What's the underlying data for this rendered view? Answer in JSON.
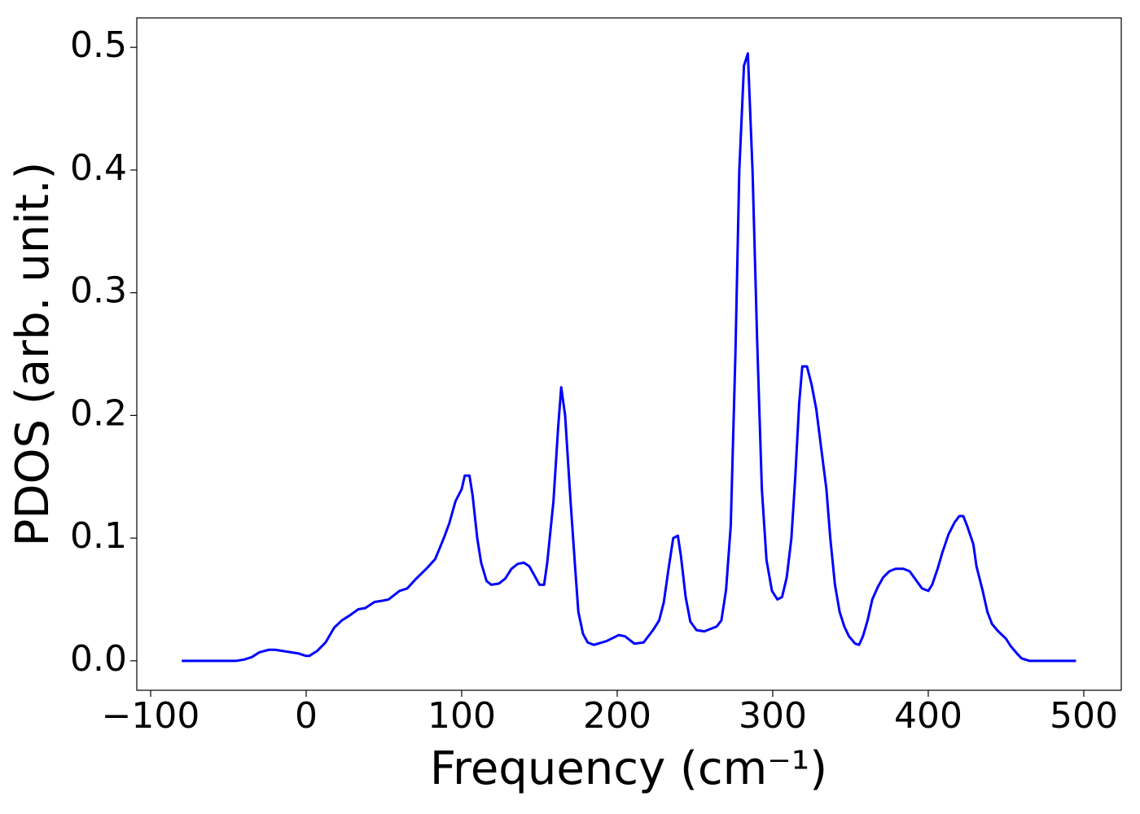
{
  "chart_data": {
    "type": "line",
    "xlabel": "Frequency (cm⁻¹)",
    "ylabel": "PDOS (arb. unit.)",
    "color": "#0000ff",
    "x": [
      -80,
      -45,
      -40,
      -35,
      -30,
      -24,
      -20,
      -15,
      -10,
      -5,
      0,
      2,
      7,
      12.5,
      18,
      23,
      28,
      33.5,
      38,
      44,
      49,
      53,
      60,
      65,
      70,
      78,
      83,
      88.5,
      92,
      96,
      100,
      102,
      105,
      107,
      110,
      112.5,
      116,
      119,
      124,
      128,
      132,
      136,
      140,
      143.5,
      147,
      150,
      153,
      155,
      159,
      162,
      164,
      166.5,
      170,
      173,
      175,
      178,
      181,
      185,
      193,
      201,
      205,
      211,
      217,
      223,
      227,
      230,
      233,
      236,
      239,
      241,
      244,
      247,
      251,
      256,
      264,
      267,
      270,
      273,
      276,
      278.5,
      281.5,
      284,
      287,
      290,
      293,
      296,
      299.5,
      303,
      306,
      309,
      312,
      314.5,
      317,
      319,
      322,
      325,
      328,
      331,
      334.5,
      337,
      340,
      343,
      346,
      349,
      353,
      355.5,
      358,
      361,
      364,
      367.5,
      371,
      375,
      379,
      384,
      388,
      392,
      396,
      400,
      402.5,
      406,
      409,
      413,
      417,
      420,
      422.5,
      425,
      429,
      431,
      435,
      438,
      441,
      445,
      450,
      453,
      457,
      460,
      465,
      478,
      495
    ],
    "values": [
      0,
      0,
      0.001,
      0.003,
      0.007,
      0.009,
      0.009,
      0.008,
      0.007,
      0.006,
      0.004,
      0.004,
      0.008,
      0.015,
      0.027,
      0.033,
      0.037,
      0.042,
      0.043,
      0.048,
      0.049,
      0.05,
      0.057,
      0.059,
      0.066,
      0.076,
      0.083,
      0.1,
      0.112,
      0.13,
      0.14,
      0.151,
      0.151,
      0.135,
      0.1,
      0.08,
      0.065,
      0.062,
      0.063,
      0.067,
      0.075,
      0.079,
      0.08,
      0.077,
      0.069,
      0.062,
      0.062,
      0.08,
      0.13,
      0.19,
      0.223,
      0.2,
      0.13,
      0.075,
      0.04,
      0.022,
      0.015,
      0.013,
      0.016,
      0.021,
      0.02,
      0.014,
      0.015,
      0.025,
      0.033,
      0.048,
      0.075,
      0.1,
      0.102,
      0.085,
      0.052,
      0.032,
      0.025,
      0.024,
      0.028,
      0.033,
      0.058,
      0.11,
      0.25,
      0.4,
      0.485,
      0.495,
      0.4,
      0.26,
      0.14,
      0.082,
      0.057,
      0.05,
      0.052,
      0.068,
      0.1,
      0.15,
      0.21,
      0.24,
      0.24,
      0.225,
      0.205,
      0.175,
      0.14,
      0.1,
      0.062,
      0.04,
      0.028,
      0.02,
      0.014,
      0.013,
      0.02,
      0.033,
      0.05,
      0.06,
      0.068,
      0.073,
      0.075,
      0.075,
      0.073,
      0.066,
      0.059,
      0.057,
      0.062,
      0.075,
      0.088,
      0.103,
      0.113,
      0.118,
      0.118,
      0.11,
      0.095,
      0.077,
      0.057,
      0.04,
      0.03,
      0.024,
      0.018,
      0.012,
      0.006,
      0.002,
      0,
      0,
      0
    ],
    "xlim": [
      -108.9,
      524.1
    ],
    "ylim": [
      -0.024,
      0.524
    ],
    "xticks": [
      {
        "value": -100,
        "label": "−100"
      },
      0,
      100,
      200,
      300,
      400,
      500
    ],
    "yticks": [
      {
        "value": 0,
        "label": "0.0"
      },
      0.1,
      0.2,
      0.3,
      0.4,
      0.5
    ]
  }
}
